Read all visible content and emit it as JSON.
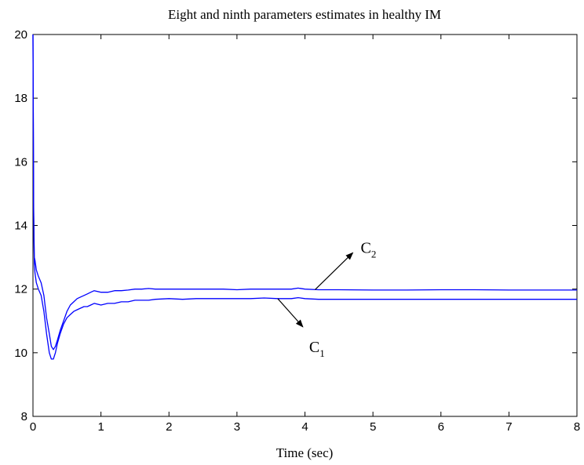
{
  "chart_data": {
    "type": "line",
    "title": "Eight and ninth parameters estimates in healthy IM",
    "xlabel": "Time (sec)",
    "ylabel": "",
    "xlim": [
      0,
      8
    ],
    "ylim": [
      8,
      20
    ],
    "xticks": [
      "0",
      "1",
      "2",
      "3",
      "4",
      "5",
      "6",
      "7",
      "8"
    ],
    "yticks": [
      "8",
      "10",
      "12",
      "14",
      "16",
      "18",
      "20"
    ],
    "grid": false,
    "line_color": "#0000ff",
    "series": [
      {
        "name": "C2",
        "x": [
          0,
          0.01,
          0.02,
          0.03,
          0.05,
          0.08,
          0.12,
          0.16,
          0.2,
          0.24,
          0.27,
          0.3,
          0.33,
          0.36,
          0.4,
          0.45,
          0.5,
          0.55,
          0.6,
          0.65,
          0.7,
          0.75,
          0.8,
          0.85,
          0.9,
          1.0,
          1.1,
          1.2,
          1.3,
          1.4,
          1.5,
          1.6,
          1.7,
          1.8,
          2.0,
          2.2,
          2.4,
          2.6,
          2.8,
          3.0,
          3.2,
          3.4,
          3.6,
          3.8,
          3.9,
          4.0,
          4.2,
          4.5,
          5.0,
          5.5,
          6.0,
          6.5,
          7.0,
          7.5,
          8.0
        ],
        "values": [
          20.0,
          14.5,
          13.0,
          12.9,
          12.6,
          12.4,
          12.2,
          11.8,
          11.1,
          10.6,
          10.2,
          10.1,
          10.2,
          10.4,
          10.7,
          11.0,
          11.3,
          11.5,
          11.6,
          11.7,
          11.75,
          11.8,
          11.85,
          11.9,
          11.95,
          11.9,
          11.9,
          11.95,
          11.95,
          11.97,
          12.0,
          12.0,
          12.02,
          12.0,
          12.0,
          12.0,
          12.0,
          12.0,
          12.0,
          11.98,
          12.0,
          12.0,
          12.0,
          12.0,
          12.03,
          12.0,
          11.98,
          11.98,
          11.97,
          11.97,
          11.98,
          11.98,
          11.97,
          11.97,
          11.97
        ]
      },
      {
        "name": "C1",
        "x": [
          0,
          0.01,
          0.02,
          0.03,
          0.05,
          0.08,
          0.12,
          0.16,
          0.2,
          0.24,
          0.27,
          0.3,
          0.33,
          0.36,
          0.4,
          0.45,
          0.5,
          0.55,
          0.6,
          0.65,
          0.7,
          0.75,
          0.8,
          0.85,
          0.9,
          1.0,
          1.1,
          1.2,
          1.3,
          1.4,
          1.5,
          1.6,
          1.7,
          1.8,
          2.0,
          2.2,
          2.4,
          2.6,
          2.8,
          3.0,
          3.2,
          3.4,
          3.6,
          3.8,
          3.9,
          4.0,
          4.2,
          4.5,
          5.0,
          5.5,
          6.0,
          6.5,
          7.0,
          7.5,
          8.0
        ],
        "values": [
          20.0,
          14.3,
          12.8,
          12.5,
          12.2,
          12.0,
          11.8,
          11.3,
          10.6,
          10.0,
          9.8,
          9.8,
          10.0,
          10.3,
          10.6,
          10.9,
          11.1,
          11.2,
          11.3,
          11.35,
          11.4,
          11.45,
          11.45,
          11.5,
          11.55,
          11.5,
          11.55,
          11.55,
          11.6,
          11.6,
          11.65,
          11.65,
          11.65,
          11.68,
          11.7,
          11.68,
          11.7,
          11.7,
          11.7,
          11.7,
          11.7,
          11.72,
          11.7,
          11.7,
          11.73,
          11.7,
          11.68,
          11.68,
          11.68,
          11.68,
          11.68,
          11.68,
          11.68,
          11.68,
          11.68
        ]
      }
    ],
    "annotations": [
      {
        "label": "C",
        "subscript": "2",
        "series": "C2"
      },
      {
        "label": "C",
        "subscript": "1",
        "series": "C1"
      }
    ]
  }
}
